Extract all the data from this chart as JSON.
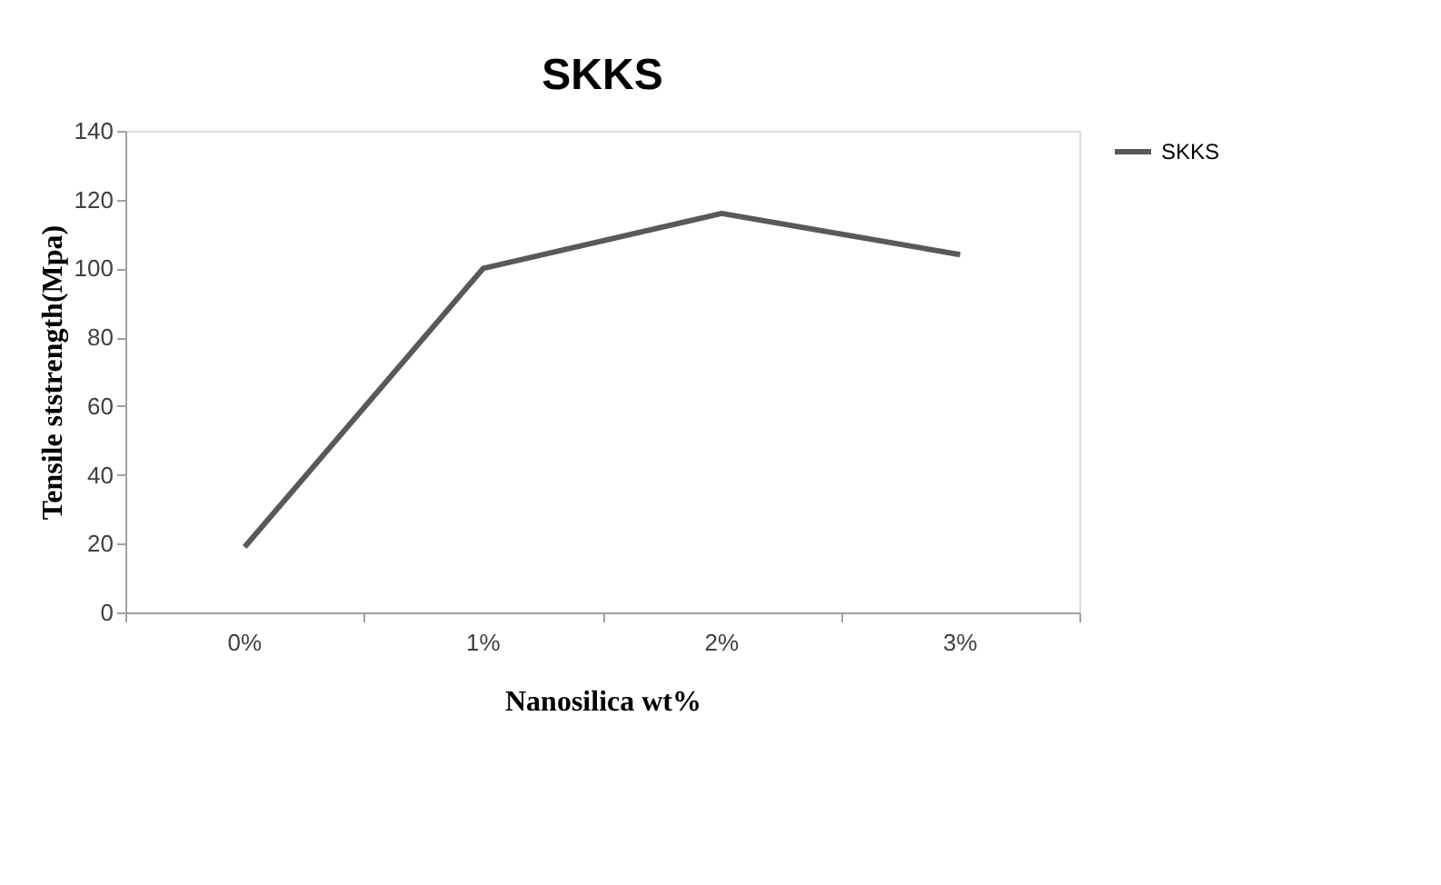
{
  "chart_data": {
    "type": "line",
    "title": "SKKS",
    "xlabel": "Nanosilica wt%",
    "ylabel": "Tensile ststrength(Mpa)",
    "categories": [
      "0%",
      "1%",
      "2%",
      "3%"
    ],
    "series": [
      {
        "name": "SKKS",
        "color": "#595959",
        "values": [
          19,
          100,
          116,
          104
        ]
      }
    ],
    "ylim": [
      0,
      140
    ],
    "yticks": [
      0,
      20,
      40,
      60,
      80,
      100,
      120,
      140
    ],
    "grid": false,
    "legend": "right",
    "marker": "none",
    "line_style": "solid"
  }
}
